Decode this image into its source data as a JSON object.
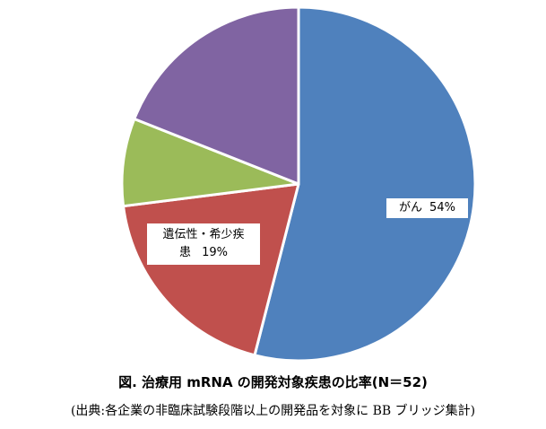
{
  "chart_data": {
    "type": "pie",
    "title": "図. 治療用 mRNA の開発対象疾患の比率(N＝52)",
    "source": "(出典:各企業の非臨床試験段階以上の開発品を対象に BB ブリッジ集計)",
    "slices": [
      {
        "name": "がん",
        "value": 54,
        "value_label": "54%",
        "color": "#4f81bd",
        "labeled": true
      },
      {
        "name": "遺伝性・希少疾患",
        "value": 19,
        "value_label": "19%",
        "color": "#c0504d",
        "labeled": true
      },
      {
        "name": "",
        "value": 8,
        "value_label": "",
        "color": "#9bbb59",
        "labeled": false
      },
      {
        "name": "",
        "value": 19,
        "value_label": "",
        "color": "#8064a2",
        "labeled": false
      }
    ],
    "start_angle": "12 o'clock",
    "direction": "clockwise",
    "legend": "none",
    "slice_borders": "white"
  },
  "labels": {
    "gan": {
      "name": "がん",
      "value": "54%"
    },
    "iden": {
      "name_line1": "遺伝性・希少疾",
      "name_line2": "患",
      "value": "19%"
    }
  }
}
